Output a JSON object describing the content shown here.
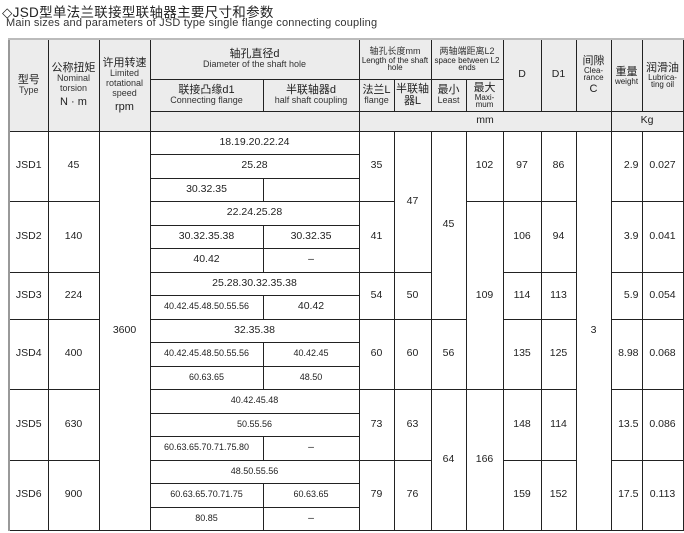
{
  "title": "◇JSD型单法兰联接型联轴器主要尺寸和参数",
  "subtitle": "Main sizes and parameters of JSD type single flange connecting coupling",
  "header": {
    "type_cn": "型号",
    "type_en": "Type",
    "torque_cn": "公称扭矩",
    "torque_en": "Nominal torsion",
    "torque_unit": "N · m",
    "speed_cn": "许用转速",
    "speed_en": "Limited rotational speed",
    "speed_unit": "rpm",
    "shaft_dia_cn": "轴孔直径d",
    "shaft_dia_en": "Diameter of the shaft hole",
    "d1_cn": "联接凸缘d1",
    "d1_en": "Connecting flange",
    "d_cn": "半联轴器d",
    "d_en": "half shaft coupling",
    "length_cn": "轴孔长度mm",
    "length_en": "Length of the shaft hole",
    "Lf_cn": "法兰L",
    "Lf_en": "flange",
    "Lh_cn": "半联轴器L",
    "L2_cn": "两轴端距离L2",
    "L2_en": "space between L2 ends",
    "min_cn": "最小",
    "min_en": "Least",
    "max_cn": "最大",
    "max_en": "Maxi-mum",
    "D": "D",
    "D1": "D1",
    "C_cn": "间隙",
    "C_en": "Clea-rance",
    "C": "C",
    "weight_cn": "重量",
    "weight_en": "weight",
    "oil_cn": "润滑油",
    "oil_en": "Lubrica-ting oil",
    "unit_mm": "mm",
    "unit_kg": "Kg"
  },
  "shared": {
    "speed": "3600",
    "clearance": "3",
    "L_half": [
      "47",
      "50",
      "60",
      "63",
      "76"
    ],
    "L2_min": [
      "45",
      "56",
      "64"
    ],
    "L2_max": [
      "102",
      "109",
      "166"
    ]
  },
  "models": [
    {
      "type": "JSD1",
      "torque": "45",
      "L_flange": "35",
      "D": "97",
      "D1": "86",
      "weight": "2.9",
      "oil": "0.027",
      "bores": [
        [
          "18.19.20.22.24"
        ],
        [
          "25.28"
        ],
        [
          "30.32.35",
          ""
        ]
      ]
    },
    {
      "type": "JSD2",
      "torque": "140",
      "L_flange": "41",
      "D": "106",
      "D1": "94",
      "weight": "3.9",
      "oil": "0.041",
      "bores": [
        [
          "22.24.25.28"
        ],
        [
          "30.32.35.38",
          "30.32.35"
        ],
        [
          "40.42",
          "–"
        ]
      ]
    },
    {
      "type": "JSD3",
      "torque": "224",
      "L_flange": "54",
      "D": "114",
      "D1": "113",
      "weight": "5.9",
      "oil": "0.054",
      "bores": [
        [
          "25.28.30.32.35.38"
        ],
        [
          "40.42.45.48.50.55.56",
          "40.42"
        ]
      ]
    },
    {
      "type": "JSD4",
      "torque": "400",
      "L_flange": "60",
      "D": "135",
      "D1": "125",
      "weight": "8.98",
      "oil": "0.068",
      "bores": [
        [
          "32.35.38"
        ],
        [
          "40.42.45.48.50.55.56",
          "40.42.45"
        ],
        [
          "60.63.65",
          "48.50"
        ]
      ]
    },
    {
      "type": "JSD5",
      "torque": "630",
      "L_flange": "73",
      "D": "148",
      "D1": "114",
      "weight": "13.5",
      "oil": "0.086",
      "bores": [
        [
          "40.42.45.48"
        ],
        [
          "50.55.56"
        ],
        [
          "60.63.65.70.71.75.80",
          "–"
        ]
      ]
    },
    {
      "type": "JSD6",
      "torque": "900",
      "L_flange": "79",
      "D": "159",
      "D1": "152",
      "weight": "17.5",
      "oil": "0.113",
      "bores": [
        [
          "48.50.55.56"
        ],
        [
          "60.63.65.70.71.75",
          "60.63.65"
        ],
        [
          "80.85",
          "–"
        ]
      ]
    }
  ]
}
